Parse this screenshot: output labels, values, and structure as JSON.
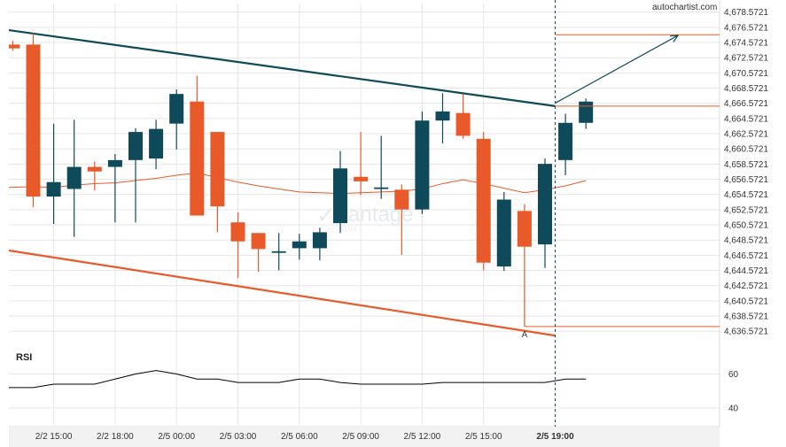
{
  "brand": "autochartist.com",
  "watermark": {
    "name": "vantage",
    "sub": "PLUS"
  },
  "colors": {
    "bull": "#0f4a5a",
    "bear": "#e85a2a",
    "resistance": "#0f4a5a",
    "support": "#e85a2a",
    "ma": "#e85a2a",
    "rsi": "#000000",
    "grid": "#e6e6e6",
    "now_line": "#0f4a5a"
  },
  "chart_data": [
    {
      "type": "candlestick",
      "title": "",
      "y_ticks": [
        "4,636.5721",
        "4,638.5721",
        "4,640.5721",
        "4,642.5721",
        "4,644.5721",
        "4,646.5721",
        "4,648.5721",
        "4,650.5721",
        "4,652.5721",
        "4,654.5721",
        "4,656.5721",
        "4,658.5721",
        "4,660.5721",
        "4,662.5721",
        "4,664.5721",
        "4,666.5721",
        "4,668.5721",
        "4,670.5721",
        "4,672.5721",
        "4,674.5721",
        "4,676.5721",
        "4,678.5721"
      ],
      "ylim": [
        4635.9,
        4679.7
      ],
      "x_ticks": [
        {
          "label": "2/2 15:00",
          "bar": 2
        },
        {
          "label": "2/2 18:00",
          "bar": 5
        },
        {
          "label": "2/5 00:00",
          "bar": 8
        },
        {
          "label": "2/5 03:00",
          "bar": 11
        },
        {
          "label": "2/5 06:00",
          "bar": 14
        },
        {
          "label": "2/5 09:00",
          "bar": 17
        },
        {
          "label": "2/5 12:00",
          "bar": 20
        },
        {
          "label": "2/5 15:00",
          "bar": 23
        },
        {
          "label": "2/5 19:00",
          "bar": 26.5,
          "bold": true
        }
      ],
      "candles": [
        {
          "o": 4674.3,
          "h": 4674.8,
          "l": 4673.5,
          "c": 4673.8
        },
        {
          "o": 4674.3,
          "h": 4675.8,
          "l": 4652.9,
          "c": 4654.3
        },
        {
          "o": 4654.3,
          "h": 4663.9,
          "l": 4650.7,
          "c": 4656.2
        },
        {
          "o": 4655.3,
          "h": 4664.4,
          "l": 4649.0,
          "c": 4658.2
        },
        {
          "o": 4658.2,
          "h": 4658.9,
          "l": 4655.1,
          "c": 4657.6
        },
        {
          "o": 4658.2,
          "h": 4659.9,
          "l": 4650.9,
          "c": 4659.1
        },
        {
          "o": 4659.1,
          "h": 4663.3,
          "l": 4650.9,
          "c": 4662.8
        },
        {
          "o": 4659.3,
          "h": 4664.4,
          "l": 4657.9,
          "c": 4663.2
        },
        {
          "o": 4663.9,
          "h": 4668.4,
          "l": 4660.5,
          "c": 4667.8
        },
        {
          "o": 4666.8,
          "h": 4670.2,
          "l": 4651.8,
          "c": 4651.8
        },
        {
          "o": 4662.8,
          "h": 4662.8,
          "l": 4649.6,
          "c": 4653.0
        },
        {
          "o": 4650.9,
          "h": 4652.2,
          "l": 4643.6,
          "c": 4648.4
        },
        {
          "o": 4649.5,
          "h": 4649.5,
          "l": 4644.4,
          "c": 4647.4
        },
        {
          "o": 4647.1,
          "h": 4649.5,
          "l": 4644.6,
          "c": 4647.1
        },
        {
          "o": 4647.5,
          "h": 4649.4,
          "l": 4646.0,
          "c": 4648.4
        },
        {
          "o": 4647.5,
          "h": 4650.2,
          "l": 4645.9,
          "c": 4649.6
        },
        {
          "o": 4650.8,
          "h": 4660.3,
          "l": 4649.5,
          "c": 4658.0
        },
        {
          "o": 4656.9,
          "h": 4662.8,
          "l": 4654.5,
          "c": 4656.3
        },
        {
          "o": 4655.5,
          "h": 4662.3,
          "l": 4654.0,
          "c": 4655.5
        },
        {
          "o": 4655.2,
          "h": 4655.9,
          "l": 4646.6,
          "c": 4652.6
        },
        {
          "o": 4652.6,
          "h": 4665.5,
          "l": 4652.0,
          "c": 4664.3
        },
        {
          "o": 4664.3,
          "h": 4667.9,
          "l": 4661.3,
          "c": 4665.5
        },
        {
          "o": 4665.3,
          "h": 4667.8,
          "l": 4661.9,
          "c": 4662.3
        },
        {
          "o": 4661.9,
          "h": 4662.8,
          "l": 4644.6,
          "c": 4645.6
        },
        {
          "o": 4645.1,
          "h": 4654.9,
          "l": 4644.5,
          "c": 4653.9
        },
        {
          "o": 4652.4,
          "h": 4653.3,
          "l": 4637.2,
          "c": 4647.7
        },
        {
          "o": 4648.0,
          "h": 4659.3,
          "l": 4644.9,
          "c": 4658.6
        },
        {
          "o": 4659.1,
          "h": 4665.2,
          "l": 4657.1,
          "c": 4664.0
        },
        {
          "o": 4664.0,
          "h": 4667.2,
          "l": 4663.2,
          "c": 4666.8
        }
      ],
      "moving_average": [
        4655.5,
        4655.6,
        4655.5,
        4655.8,
        4656.0,
        4656.1,
        4656.4,
        4656.7,
        4657.1,
        4657.4,
        4656.8,
        4656.2,
        4655.7,
        4655.3,
        4654.9,
        4654.8,
        4654.7,
        4654.8,
        4654.9,
        4655.0,
        4655.3,
        4656.0,
        4656.5,
        4656.0,
        4655.4,
        4654.8,
        4655.2,
        4655.7,
        4656.4
      ],
      "resistance_line": {
        "x": [
          0,
          26.5
        ],
        "y": [
          4676.2,
          4666.2
        ]
      },
      "support_line": {
        "x": [
          0,
          26.5
        ],
        "y": [
          4647.2,
          4636.0
        ]
      },
      "forecast_arrow": {
        "x": [
          26.5,
          32.5
        ],
        "y": [
          4666.6,
          4675.5
        ]
      },
      "levels": [
        {
          "name": "target",
          "value": 4675.6
        },
        {
          "name": "breakout",
          "value": 4666.2
        },
        {
          "name": "low",
          "value": 4637.2
        }
      ],
      "point_label": {
        "text": "A",
        "bar": 25,
        "value": 4637.2
      }
    },
    {
      "type": "line",
      "title": "RSI",
      "y_ticks": [
        40,
        60
      ],
      "ylim": [
        30,
        78
      ],
      "values": [
        52,
        52,
        54,
        54,
        54,
        57,
        60,
        62,
        60,
        57,
        57,
        55,
        55,
        55,
        57,
        57,
        55,
        54,
        54,
        54,
        54,
        55,
        55,
        55,
        55,
        55,
        55,
        57,
        57
      ]
    }
  ]
}
